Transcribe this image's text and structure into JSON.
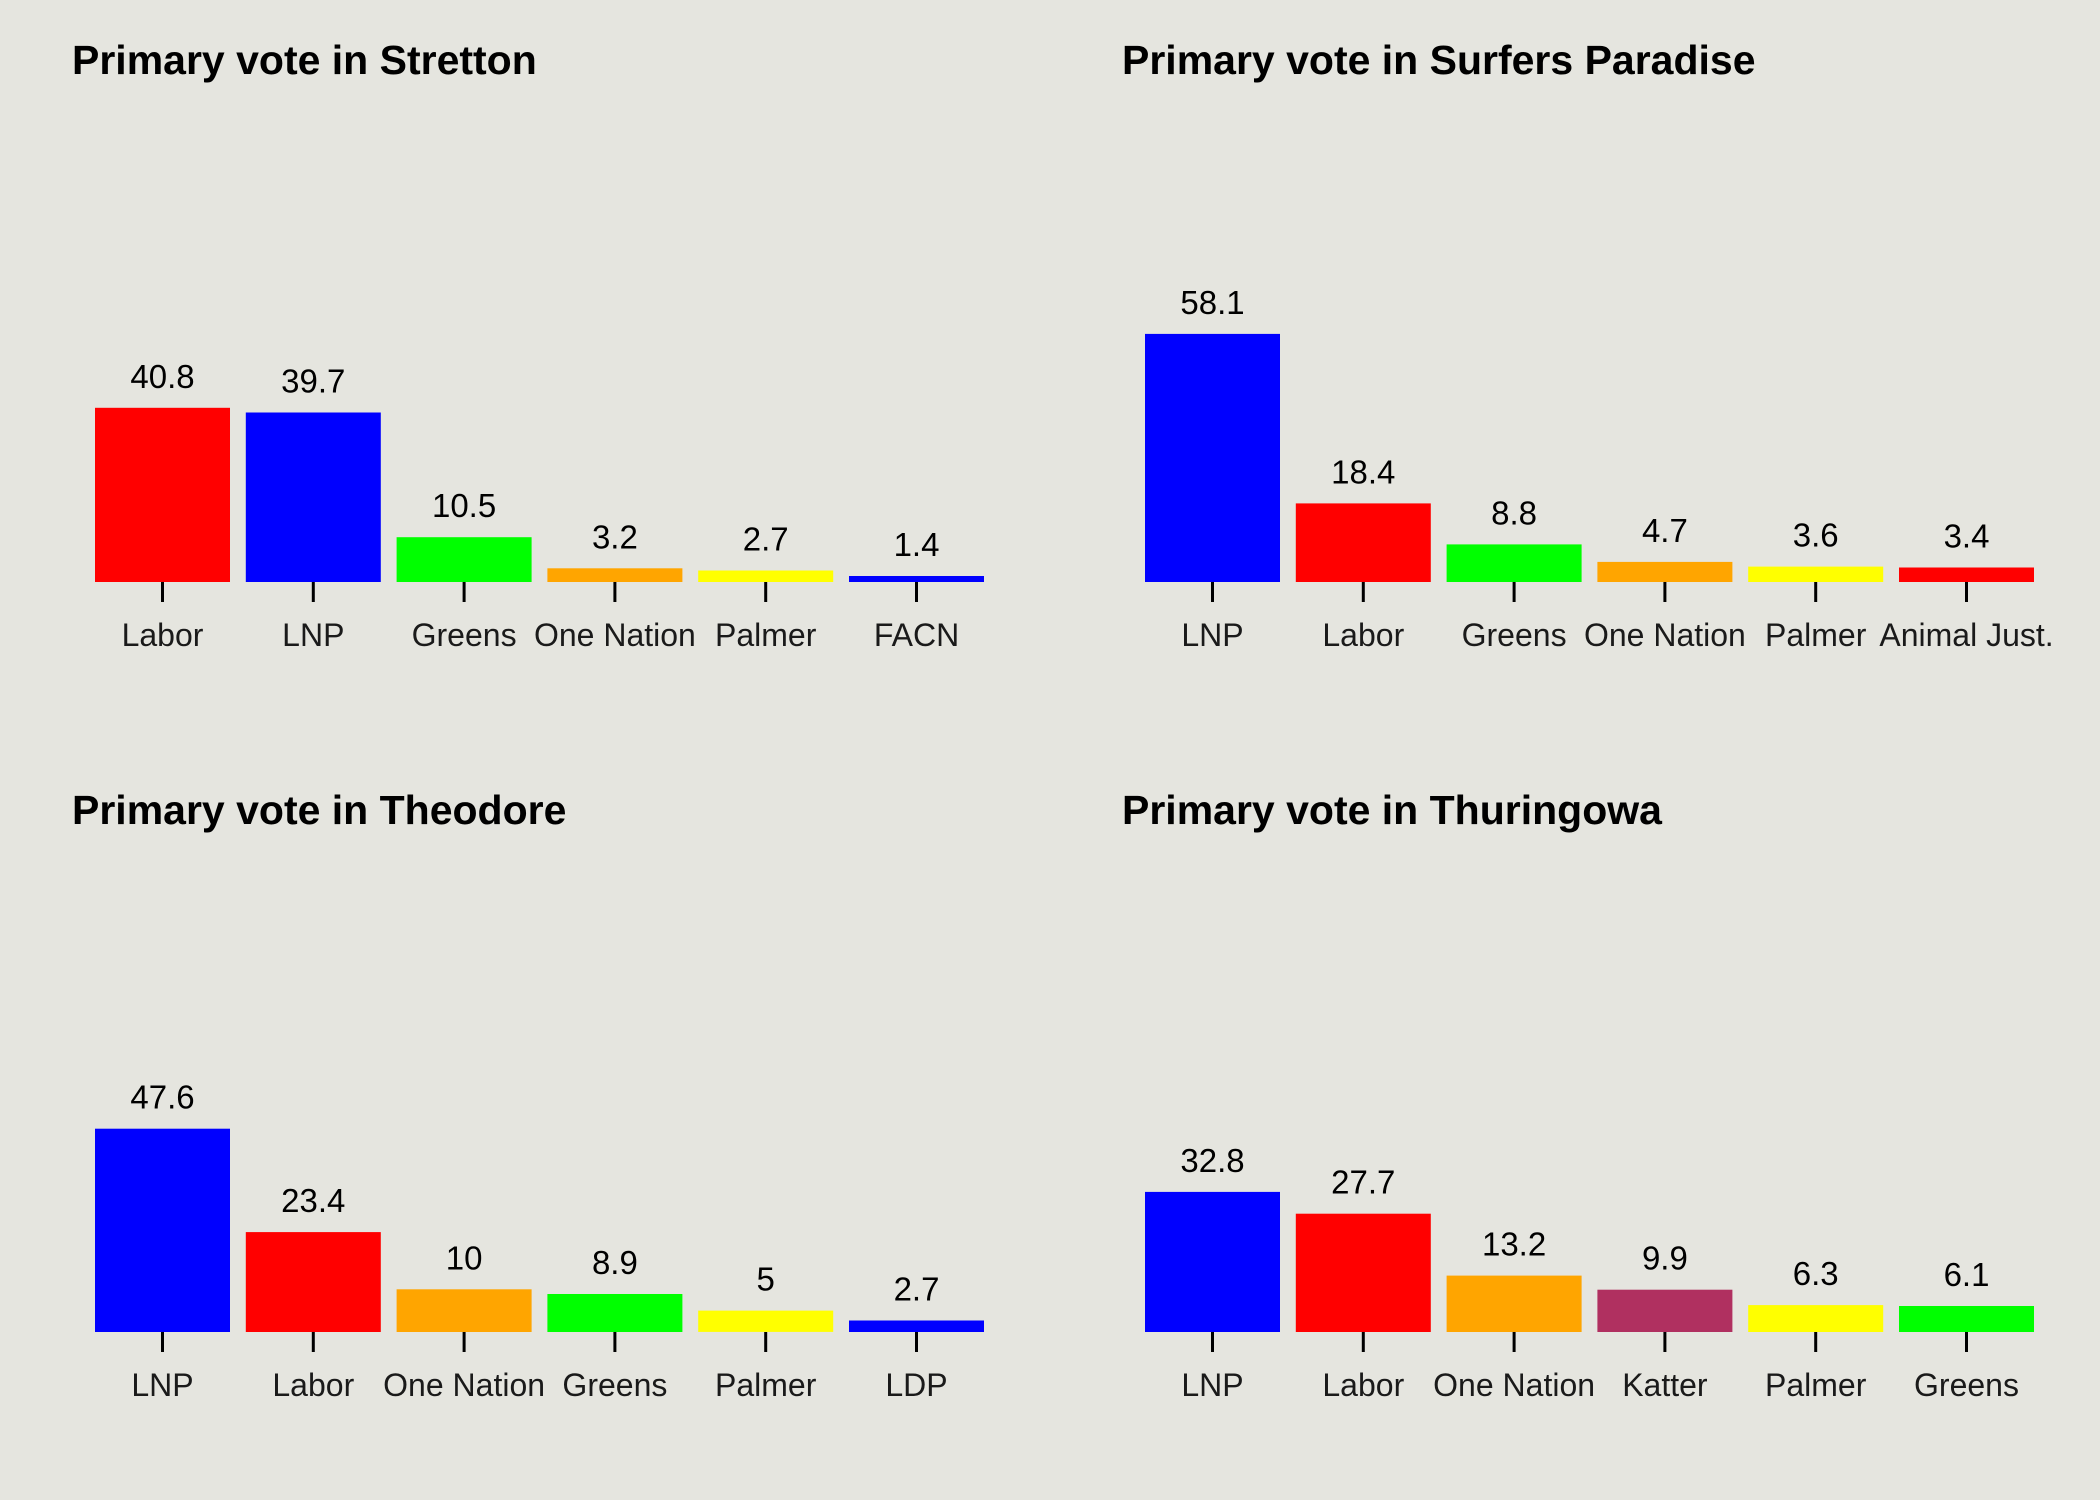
{
  "chart_data": [
    {
      "type": "bar",
      "title": "Primary vote in Stretton",
      "xlabel": "",
      "ylabel": "",
      "categories": [
        "Labor",
        "LNP",
        "Greens",
        "One Nation",
        "Palmer",
        "FACN"
      ],
      "values": [
        40.8,
        39.7,
        10.5,
        3.2,
        2.7,
        1.4
      ],
      "colors": [
        "#ff0000",
        "#0000ff",
        "#00ff00",
        "#ffa500",
        "#ffff00",
        "#0000ff"
      ],
      "ylim": [
        0,
        62
      ],
      "grid": false,
      "legend": "none"
    },
    {
      "type": "bar",
      "title": "Primary vote in Surfers Paradise",
      "xlabel": "",
      "ylabel": "",
      "categories": [
        "LNP",
        "Labor",
        "Greens",
        "One Nation",
        "Palmer",
        "Animal Just."
      ],
      "values": [
        58.1,
        18.4,
        8.8,
        4.7,
        3.6,
        3.4
      ],
      "colors": [
        "#0000ff",
        "#ff0000",
        "#00ff00",
        "#ffa500",
        "#ffff00",
        "#ff0000"
      ],
      "ylim": [
        0,
        62
      ],
      "grid": false,
      "legend": "none"
    },
    {
      "type": "bar",
      "title": "Primary vote in Theodore",
      "xlabel": "",
      "ylabel": "",
      "categories": [
        "LNP",
        "Labor",
        "One Nation",
        "Greens",
        "Palmer",
        "LDP"
      ],
      "values": [
        47.6,
        23.4,
        10,
        8.9,
        5,
        2.7
      ],
      "colors": [
        "#0000ff",
        "#ff0000",
        "#ffa500",
        "#00ff00",
        "#ffff00",
        "#0000ff"
      ],
      "ylim": [
        0,
        62
      ],
      "grid": false,
      "legend": "none"
    },
    {
      "type": "bar",
      "title": "Primary vote in Thuringowa",
      "xlabel": "",
      "ylabel": "",
      "categories": [
        "LNP",
        "Labor",
        "One Nation",
        "Katter",
        "Palmer",
        "Greens"
      ],
      "values": [
        32.8,
        27.7,
        13.2,
        9.9,
        6.3,
        6.1
      ],
      "colors": [
        "#0000ff",
        "#ff0000",
        "#ffa500",
        "#b03060",
        "#ffff00",
        "#00ff00"
      ],
      "ylim": [
        0,
        62
      ],
      "grid": false,
      "legend": "none"
    }
  ]
}
